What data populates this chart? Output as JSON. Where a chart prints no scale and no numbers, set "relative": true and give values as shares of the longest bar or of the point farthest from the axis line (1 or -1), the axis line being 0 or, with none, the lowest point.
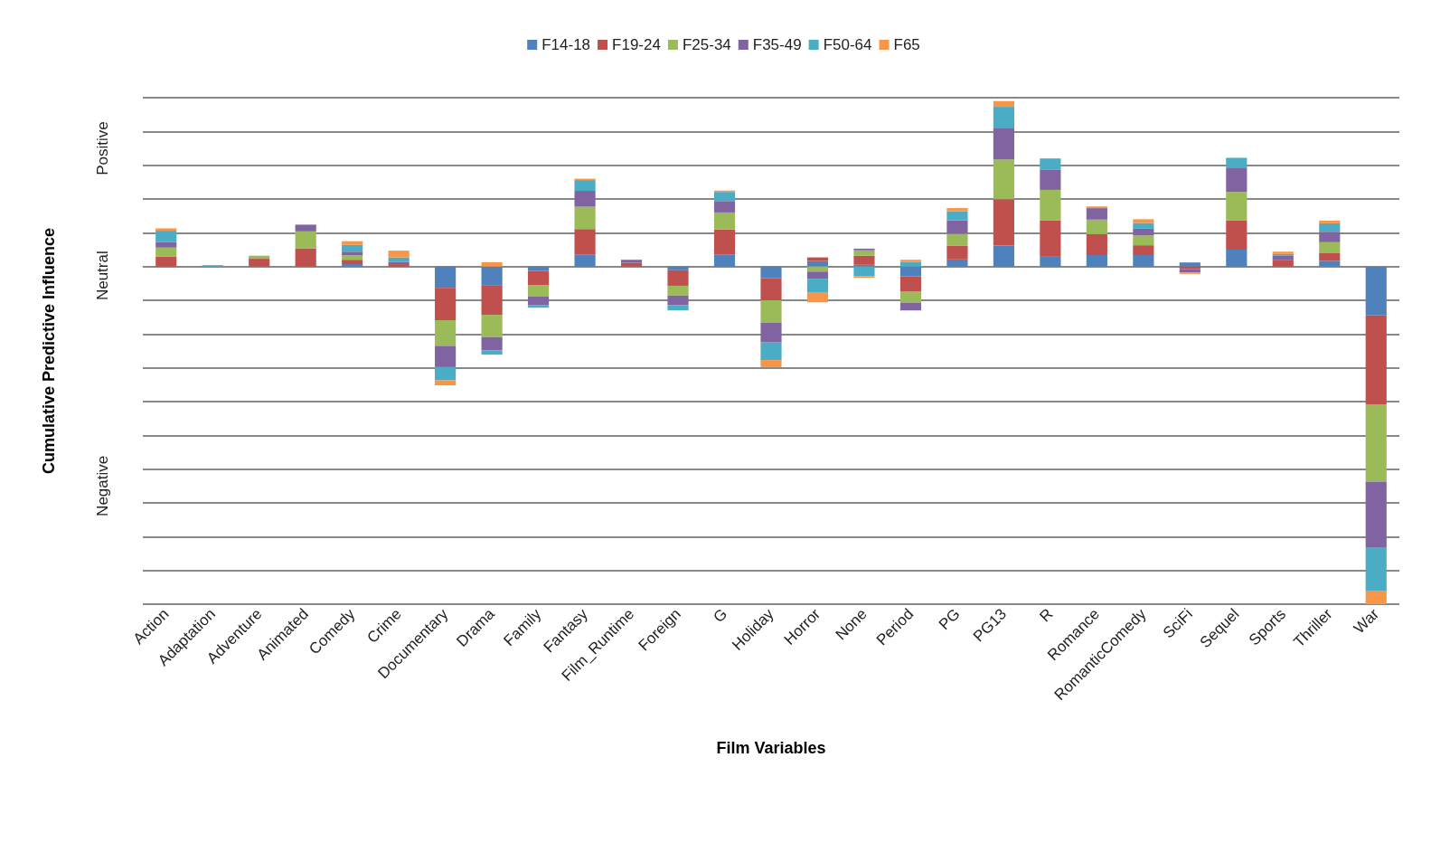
{
  "chart_data": {
    "type": "bar",
    "stacked": true,
    "relative": true,
    "xlabel": "Film Variables",
    "ylabel": "Cumulative Predictive Influence",
    "legend": "top",
    "grid": "y",
    "annotations": [
      "Positive",
      "Neutral",
      "Negative"
    ],
    "categories": [
      "Action",
      "Adaptation",
      "Adventure",
      "Animated",
      "Comedy",
      "Crime",
      "Documentary",
      "Drama",
      "Family",
      "Fantasy",
      "Film_Runtime",
      "Foreign",
      "G",
      "Holiday",
      "Horror",
      "None",
      "Period",
      "PG",
      "PG13",
      "R",
      "Romance",
      "RomanticComedy",
      "SciFi",
      "Sequel",
      "Sports",
      "Thriller",
      "War"
    ],
    "series": [
      {
        "name": "F14-18",
        "color": "#4f81bd",
        "values": [
          0,
          0,
          0,
          0,
          0.007,
          0,
          -0.063,
          -0.055,
          -0.013,
          0.036,
          0,
          -0.011,
          0.036,
          -0.034,
          0.016,
          0.005,
          -0.029,
          0.021,
          0.062,
          0.031,
          0.034,
          0.034,
          0.012,
          0.05,
          0,
          0.017,
          -0.145
        ]
      },
      {
        "name": "F19-24",
        "color": "#c0504d",
        "values": [
          0.029,
          0,
          0.023,
          0.054,
          0.013,
          0.007,
          -0.096,
          -0.088,
          -0.043,
          0.075,
          0.011,
          -0.046,
          0.074,
          -0.066,
          0.011,
          0.027,
          -0.046,
          0.04,
          0.137,
          0.106,
          0.062,
          0.029,
          -0.007,
          0.087,
          0.02,
          0.024,
          -0.263
        ]
      },
      {
        "name": "F25-34",
        "color": "#9bbb59",
        "values": [
          0.027,
          0,
          0.009,
          0.05,
          0.013,
          0,
          -0.076,
          -0.066,
          -0.032,
          0.066,
          0,
          -0.029,
          0.05,
          -0.066,
          -0.015,
          0.016,
          -0.032,
          0.036,
          0.118,
          0.09,
          0.043,
          0.029,
          0,
          0.084,
          0,
          0.031,
          -0.229
        ]
      },
      {
        "name": "F35-49",
        "color": "#8064a2",
        "values": [
          0.016,
          0,
          0,
          0.02,
          0.011,
          0.007,
          -0.063,
          -0.039,
          -0.027,
          0.047,
          0.009,
          -0.029,
          0.034,
          -0.059,
          -0.021,
          0.005,
          -0.023,
          0.04,
          0.092,
          0.059,
          0.034,
          0.02,
          -0.011,
          0.07,
          0.013,
          0.031,
          -0.194
        ]
      },
      {
        "name": "F50-64",
        "color": "#4bacc6",
        "values": [
          0.034,
          0.004,
          0,
          0,
          0.02,
          0.013,
          -0.039,
          -0.013,
          -0.007,
          0.032,
          0,
          -0.015,
          0.027,
          -0.052,
          -0.04,
          -0.029,
          0.013,
          0.027,
          0.064,
          0.034,
          0,
          0.017,
          0,
          0.031,
          0.004,
          0.025,
          -0.131
        ]
      },
      {
        "name": "F65",
        "color": "#f79646",
        "values": [
          0.007,
          0,
          0,
          0,
          0.011,
          0.02,
          -0.015,
          0.013,
          0,
          0.004,
          0,
          0,
          0.004,
          -0.021,
          -0.03,
          -0.004,
          0.007,
          0.009,
          0.017,
          0,
          0.005,
          0.011,
          -0.004,
          0,
          0.007,
          0.008,
          -0.038
        ]
      }
    ]
  }
}
